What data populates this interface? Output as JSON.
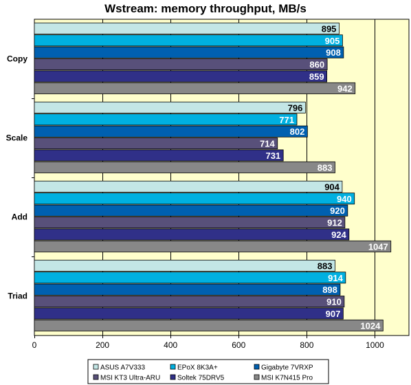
{
  "chart_data": {
    "type": "bar",
    "orientation": "horizontal",
    "title": "Wstream: memory throughput, MB/s",
    "categories": [
      "Copy",
      "Scale",
      "Add",
      "Triad"
    ],
    "series": [
      {
        "name": "ASUS A7V333",
        "color": "#c3e6e6",
        "label_color": "#000000",
        "values": [
          895,
          796,
          904,
          883
        ]
      },
      {
        "name": "EPoX 8K3A+",
        "color": "#00b0e0",
        "label_color": "#ffffff",
        "values": [
          905,
          771,
          940,
          914
        ]
      },
      {
        "name": "Gigabyte 7VRXP",
        "color": "#0060b0",
        "label_color": "#ffffff",
        "values": [
          908,
          802,
          920,
          898
        ]
      },
      {
        "name": "MSI KT3 Ultra-ARU",
        "color": "#58507a",
        "label_color": "#ffffff",
        "values": [
          860,
          714,
          912,
          910
        ]
      },
      {
        "name": "Soltek 75DRV5",
        "color": "#303088",
        "label_color": "#ffffff",
        "values": [
          859,
          731,
          924,
          907
        ]
      },
      {
        "name": "MSI K7N415 Pro",
        "color": "#888888",
        "label_color": "#ffffff",
        "values": [
          942,
          883,
          1047,
          1024
        ]
      }
    ],
    "xlim": [
      0,
      1100
    ],
    "xticks": [
      0,
      200,
      400,
      600,
      800,
      1000
    ],
    "grid": "vertical",
    "plot_background": "#ffffcc",
    "legend_position": "bottom"
  }
}
